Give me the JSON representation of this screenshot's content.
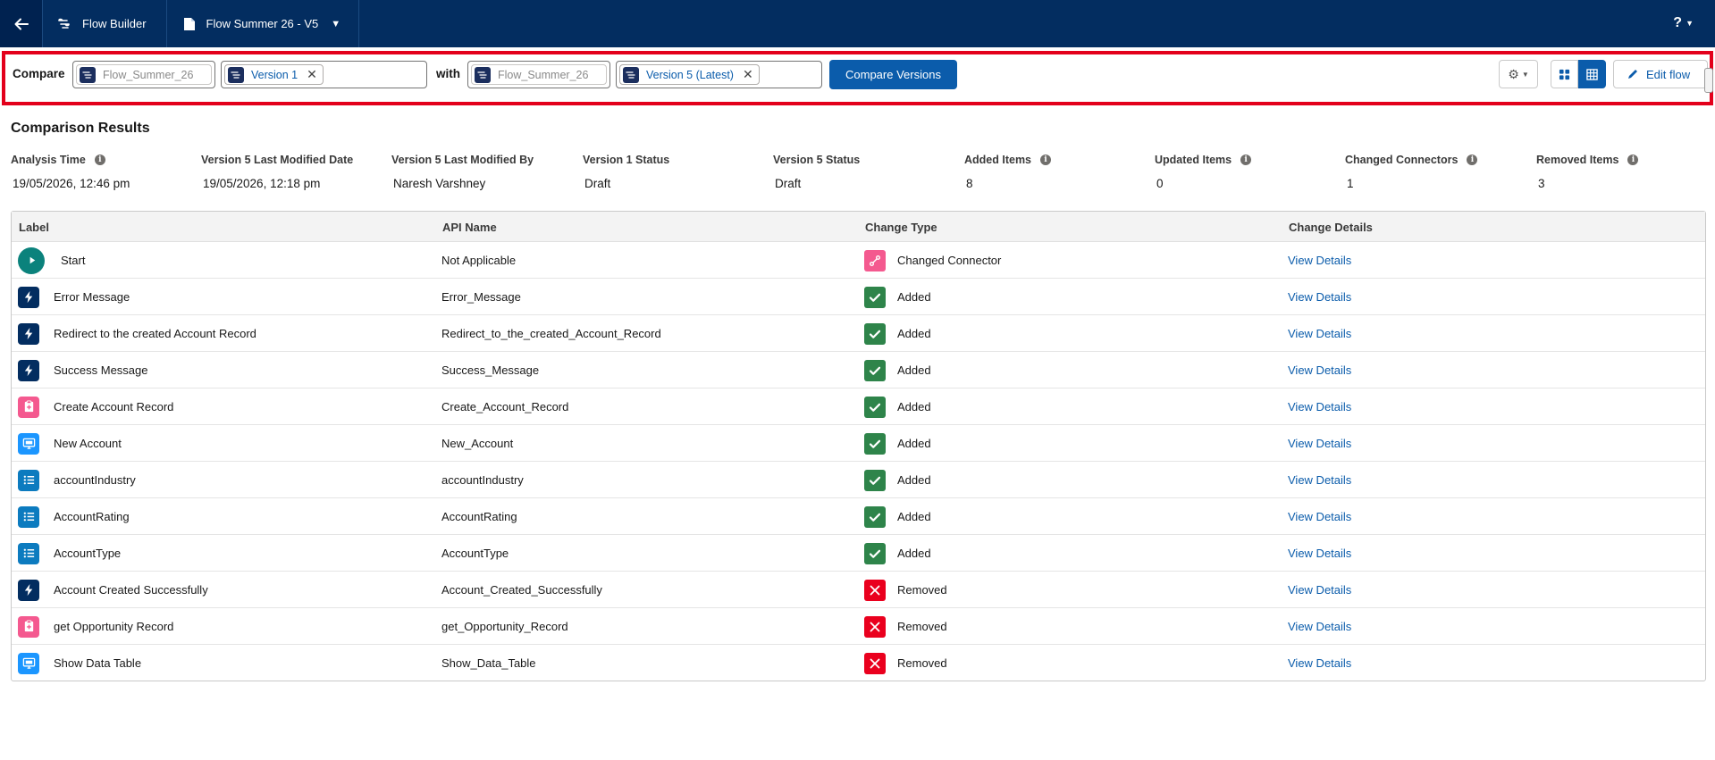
{
  "topbar": {
    "app_label": "Flow Builder",
    "doc_label": "Flow Summer 26 - V5",
    "help": "?"
  },
  "compare": {
    "compare_label": "Compare",
    "with_label": "with",
    "left_flow": "Flow_Summer_26",
    "left_version": "Version 1",
    "right_flow": "Flow_Summer_26",
    "right_version": "Version 5 (Latest)",
    "compare_button": "Compare Versions",
    "edit_button": "Edit flow"
  },
  "results": {
    "title": "Comparison Results",
    "stats": [
      {
        "label": "Analysis Time",
        "value": "19/05/2026, 12:46 pm",
        "info": true
      },
      {
        "label": "Version 5 Last Modified Date",
        "value": "19/05/2026, 12:18 pm",
        "info": false
      },
      {
        "label": "Version 5 Last Modified By",
        "value": "Naresh Varshney",
        "info": false
      },
      {
        "label": "Version 1 Status",
        "value": "Draft",
        "info": false
      },
      {
        "label": "Version 5 Status",
        "value": "Draft",
        "info": false
      },
      {
        "label": "Added Items",
        "value": "8",
        "info": true
      },
      {
        "label": "Updated Items",
        "value": "0",
        "info": true
      },
      {
        "label": "Changed Connectors",
        "value": "1",
        "info": true
      },
      {
        "label": "Removed Items",
        "value": "3",
        "info": true
      }
    ]
  },
  "table": {
    "columns": [
      "Label",
      "API Name",
      "Change Type",
      "Change Details"
    ],
    "rows": [
      {
        "icon": "start",
        "label": "Start",
        "api": "Not Applicable",
        "change": "Changed Connector",
        "change_kind": "changed",
        "details": "View Details"
      },
      {
        "icon": "bolt",
        "label": "Error Message",
        "api": "Error_Message",
        "change": "Added",
        "change_kind": "added",
        "details": "View Details"
      },
      {
        "icon": "bolt",
        "label": "Redirect to the created Account Record",
        "api": "Redirect_to_the_created_Account_Record",
        "change": "Added",
        "change_kind": "added",
        "details": "View Details"
      },
      {
        "icon": "bolt",
        "label": "Success Message",
        "api": "Success_Message",
        "change": "Added",
        "change_kind": "added",
        "details": "View Details"
      },
      {
        "icon": "rec",
        "label": "Create Account Record",
        "api": "Create_Account_Record",
        "change": "Added",
        "change_kind": "added",
        "details": "View Details"
      },
      {
        "icon": "screen",
        "label": "New Account",
        "api": "New_Account",
        "change": "Added",
        "change_kind": "added",
        "details": "View Details"
      },
      {
        "icon": "list",
        "label": "accountIndustry",
        "api": "accountIndustry",
        "change": "Added",
        "change_kind": "added",
        "details": "View Details"
      },
      {
        "icon": "list",
        "label": "AccountRating",
        "api": "AccountRating",
        "change": "Added",
        "change_kind": "added",
        "details": "View Details"
      },
      {
        "icon": "list",
        "label": "AccountType",
        "api": "AccountType",
        "change": "Added",
        "change_kind": "added",
        "details": "View Details"
      },
      {
        "icon": "bolt",
        "label": "Account Created Successfully",
        "api": "Account_Created_Successfully",
        "change": "Removed",
        "change_kind": "removed",
        "details": "View Details"
      },
      {
        "icon": "rec",
        "label": "get Opportunity Record",
        "api": "get_Opportunity_Record",
        "change": "Removed",
        "change_kind": "removed",
        "details": "View Details"
      },
      {
        "icon": "screen",
        "label": "Show Data Table",
        "api": "Show_Data_Table",
        "change": "Removed",
        "change_kind": "removed",
        "details": "View Details"
      }
    ]
  }
}
